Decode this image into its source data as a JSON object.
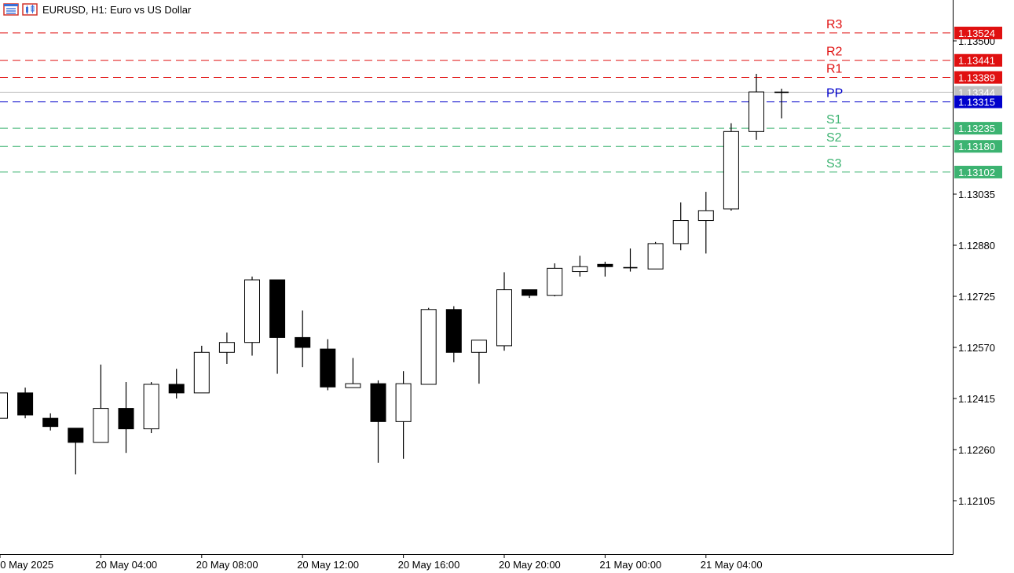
{
  "header": {
    "title": "EURUSD, H1:  Euro vs US Dollar",
    "icons": [
      "window-list-icon",
      "chart-type-icon"
    ]
  },
  "chart_data": {
    "type": "candlestick",
    "symbol": "EURUSD",
    "timeframe": "H1",
    "y_ticks": [
      "1.13500",
      "1.13035",
      "1.12880",
      "1.12725",
      "1.12570",
      "1.12415",
      "1.12260",
      "1.12105"
    ],
    "ylim": [
      1.1204,
      1.1359
    ],
    "x_tick_labels": [
      "20 May 2025",
      "20 May 04:00",
      "20 May 08:00",
      "20 May 12:00",
      "20 May 16:00",
      "20 May 20:00",
      "21 May 00:00",
      "21 May 04:00"
    ],
    "current_price": "1.13344",
    "colors": {
      "resistance": "#e01010",
      "pivot": "#0000cc",
      "support": "#3cb371",
      "current": "#c0c0c0",
      "grid": "#000000"
    },
    "pivot_levels": [
      {
        "label": "R3",
        "value": 1.13524,
        "price_label": "1.13524",
        "kind": "resistance"
      },
      {
        "label": "R2",
        "value": 1.13441,
        "price_label": "1.13441",
        "kind": "resistance"
      },
      {
        "label": "R1",
        "value": 1.13389,
        "price_label": "1.13389",
        "kind": "resistance"
      },
      {
        "label": "PP",
        "value": 1.13315,
        "price_label": "1.13315",
        "kind": "pivot"
      },
      {
        "label": "S1",
        "value": 1.13235,
        "price_label": "1.13235",
        "kind": "support"
      },
      {
        "label": "S2",
        "value": 1.1318,
        "price_label": "1.13180",
        "kind": "support"
      },
      {
        "label": "S3",
        "value": 1.13102,
        "price_label": "1.13102",
        "kind": "support"
      }
    ],
    "candles": [
      {
        "time": "20 May 00:00",
        "open": 1.12355,
        "high": 1.12432,
        "low": 1.12355,
        "close": 1.12432
      },
      {
        "time": "20 May 01:00",
        "open": 1.12432,
        "high": 1.12448,
        "low": 1.12355,
        "close": 1.12365
      },
      {
        "time": "20 May 02:00",
        "open": 1.12355,
        "high": 1.1237,
        "low": 1.12318,
        "close": 1.1233
      },
      {
        "time": "20 May 03:00",
        "open": 1.12325,
        "high": 1.12325,
        "low": 1.12185,
        "close": 1.12282
      },
      {
        "time": "20 May 04:00",
        "open": 1.12282,
        "high": 1.12518,
        "low": 1.12282,
        "close": 1.12385
      },
      {
        "time": "20 May 05:00",
        "open": 1.12385,
        "high": 1.12465,
        "low": 1.1225,
        "close": 1.12323
      },
      {
        "time": "20 May 06:00",
        "open": 1.12323,
        "high": 1.12465,
        "low": 1.1231,
        "close": 1.12458
      },
      {
        "time": "20 May 07:00",
        "open": 1.12458,
        "high": 1.12505,
        "low": 1.12415,
        "close": 1.12432
      },
      {
        "time": "20 May 08:00",
        "open": 1.12432,
        "high": 1.12575,
        "low": 1.12432,
        "close": 1.12555
      },
      {
        "time": "20 May 09:00",
        "open": 1.12555,
        "high": 1.12615,
        "low": 1.1252,
        "close": 1.12585
      },
      {
        "time": "20 May 10:00",
        "open": 1.12585,
        "high": 1.12785,
        "low": 1.12545,
        "close": 1.12775
      },
      {
        "time": "20 May 11:00",
        "open": 1.12775,
        "high": 1.12775,
        "low": 1.1249,
        "close": 1.126
      },
      {
        "time": "20 May 12:00",
        "open": 1.126,
        "high": 1.12682,
        "low": 1.1251,
        "close": 1.1257
      },
      {
        "time": "20 May 13:00",
        "open": 1.12565,
        "high": 1.12595,
        "low": 1.1244,
        "close": 1.1245
      },
      {
        "time": "20 May 14:00",
        "open": 1.12448,
        "high": 1.12538,
        "low": 1.12448,
        "close": 1.1246
      },
      {
        "time": "20 May 15:00",
        "open": 1.1246,
        "high": 1.1247,
        "low": 1.1222,
        "close": 1.12345
      },
      {
        "time": "20 May 16:00",
        "open": 1.12345,
        "high": 1.12498,
        "low": 1.12232,
        "close": 1.1246
      },
      {
        "time": "20 May 17:00",
        "open": 1.12458,
        "high": 1.1269,
        "low": 1.12458,
        "close": 1.12685
      },
      {
        "time": "20 May 18:00",
        "open": 1.12685,
        "high": 1.12695,
        "low": 1.12525,
        "close": 1.12555
      },
      {
        "time": "20 May 19:00",
        "open": 1.12555,
        "high": 1.12585,
        "low": 1.1246,
        "close": 1.12592
      },
      {
        "time": "20 May 20:00",
        "open": 1.12575,
        "high": 1.12798,
        "low": 1.1256,
        "close": 1.12745
      },
      {
        "time": "20 May 21:00",
        "open": 1.12745,
        "high": 1.12745,
        "low": 1.1272,
        "close": 1.12728
      },
      {
        "time": "20 May 22:00",
        "open": 1.12728,
        "high": 1.12825,
        "low": 1.12725,
        "close": 1.1281
      },
      {
        "time": "20 May 23:00",
        "open": 1.128,
        "high": 1.12848,
        "low": 1.12785,
        "close": 1.12815
      },
      {
        "time": "21 May 00:00",
        "open": 1.12822,
        "high": 1.1283,
        "low": 1.12785,
        "close": 1.12815
      },
      {
        "time": "21 May 01:00",
        "open": 1.12812,
        "high": 1.1287,
        "low": 1.128,
        "close": 1.12808
      },
      {
        "time": "21 May 02:00",
        "open": 1.12808,
        "high": 1.1289,
        "low": 1.12808,
        "close": 1.12885
      },
      {
        "time": "21 May 03:00",
        "open": 1.12885,
        "high": 1.1301,
        "low": 1.12865,
        "close": 1.12955
      },
      {
        "time": "21 May 04:00",
        "open": 1.12955,
        "high": 1.13042,
        "low": 1.12855,
        "close": 1.12985
      },
      {
        "time": "21 May 05:00",
        "open": 1.1299,
        "high": 1.1325,
        "low": 1.12985,
        "close": 1.13225
      },
      {
        "time": "21 May 06:00",
        "open": 1.13225,
        "high": 1.134,
        "low": 1.132,
        "close": 1.13345
      },
      {
        "time": "21 May 07:00",
        "open": 1.13344,
        "high": 1.13355,
        "low": 1.13265,
        "close": 1.13344
      }
    ]
  }
}
